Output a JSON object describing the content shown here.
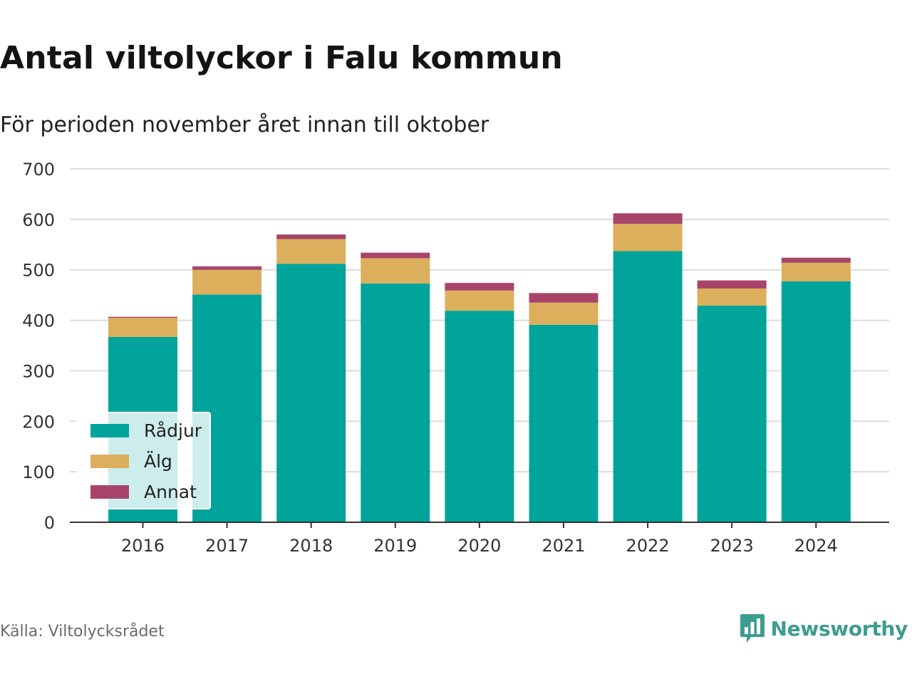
{
  "title": "Antal viltolyckor i Falu kommun",
  "subtitle": "För perioden november året innan till oktober",
  "source": "Källa: Viltolycksrådet",
  "brand": {
    "name": "Newsworthy",
    "icon": "bar-chart-speech-bubble-icon",
    "color": "#3d9c90"
  },
  "chart_data": {
    "type": "bar",
    "stacked": true,
    "categories": [
      "2016",
      "2017",
      "2018",
      "2019",
      "2020",
      "2021",
      "2022",
      "2023",
      "2024"
    ],
    "series": [
      {
        "name": "Rådjur",
        "color": "#00a49a",
        "values": [
          367,
          451,
          512,
          473,
          419,
          391,
          537,
          429,
          477
        ]
      },
      {
        "name": "Älg",
        "color": "#dcaf5c",
        "values": [
          38,
          49,
          49,
          50,
          40,
          44,
          54,
          34,
          37
        ]
      },
      {
        "name": "Annat",
        "color": "#a8446a",
        "values": [
          2,
          7,
          9,
          11,
          15,
          19,
          21,
          16,
          10
        ]
      }
    ],
    "y_ticks": [
      "0",
      "100",
      "200",
      "300",
      "400",
      "500",
      "600",
      "700"
    ],
    "ylim": [
      0,
      700
    ],
    "xlabel": "",
    "ylabel": "",
    "grid": true,
    "legend": "bottom-left"
  }
}
